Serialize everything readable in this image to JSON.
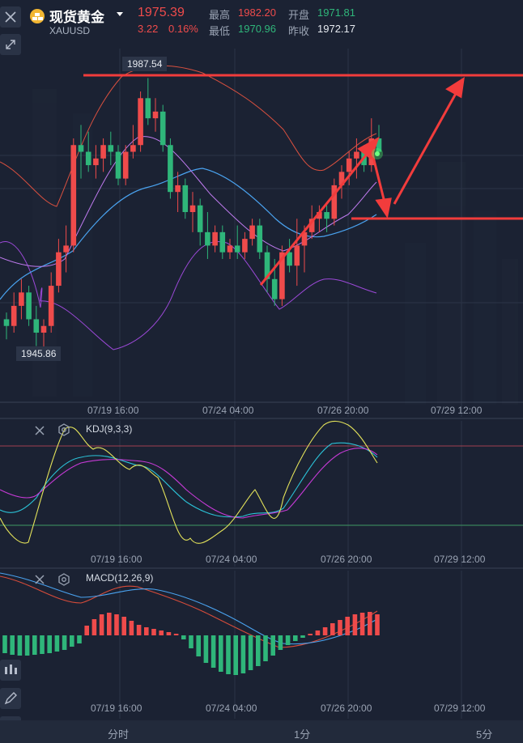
{
  "header": {
    "name": "现货黄金",
    "symbol": "XAUUSD",
    "price": "1975.39",
    "change": "3.22",
    "change_pct": "0.16%",
    "high_label": "最高",
    "high": "1982.20",
    "open_label": "开盘",
    "open": "1971.81",
    "low_label": "最低",
    "low": "1970.96",
    "prev_label": "昨收",
    "prev": "1972.17",
    "colors": {
      "up": "#ef4b4b",
      "down": "#2fb67a",
      "text": "#c9d1dc"
    }
  },
  "price_labels": {
    "max": "1987.54",
    "min": "1945.86"
  },
  "kdj": {
    "label": "KDJ(9,3,3)"
  },
  "macd": {
    "label": "MACD(12,26,9)"
  },
  "time_axis": [
    "07/19 16:00",
    "07/24 04:00",
    "07/26 20:00",
    "07/29 12:00"
  ],
  "bottom_tabs": [
    "分时",
    "1分",
    "5分"
  ],
  "chart_data": [
    {
      "type": "candlestick",
      "categories_note": "hourly candles",
      "x_ticks": [
        "07/19 16:00",
        "07/24 04:00",
        "07/26 20:00",
        "07/29 12:00"
      ],
      "annotations": [
        "1987.54",
        "1945.86"
      ],
      "candles": [
        [
          1951,
          1952,
          1948,
          1950
        ],
        [
          1950,
          1955,
          1949,
          1953
        ],
        [
          1953,
          1957,
          1951,
          1955
        ],
        [
          1955,
          1956,
          1950,
          1951
        ],
        [
          1951,
          1953,
          1947,
          1949
        ],
        [
          1949,
          1951,
          1946,
          1950
        ],
        [
          1950,
          1958,
          1949,
          1956
        ],
        [
          1956,
          1963,
          1955,
          1961
        ],
        [
          1961,
          1965,
          1958,
          1962
        ],
        [
          1962,
          1978,
          1961,
          1977
        ],
        [
          1977,
          1980,
          1972,
          1976
        ],
        [
          1976,
          1979,
          1973,
          1974
        ],
        [
          1974,
          1977,
          1972,
          1975
        ],
        [
          1975,
          1978,
          1973,
          1977
        ],
        [
          1977,
          1979,
          1974,
          1976
        ],
        [
          1976,
          1977,
          1971,
          1972
        ],
        [
          1972,
          1977,
          1971,
          1976
        ],
        [
          1976,
          1980,
          1975,
          1977
        ],
        [
          1977,
          1985,
          1976,
          1984
        ],
        [
          1984,
          1987,
          1980,
          1981
        ],
        [
          1981,
          1984,
          1979,
          1982
        ],
        [
          1982,
          1983,
          1976,
          1977
        ],
        [
          1977,
          1978,
          1969,
          1970
        ],
        [
          1970,
          1973,
          1967,
          1971
        ],
        [
          1971,
          1972,
          1966,
          1967
        ],
        [
          1967,
          1970,
          1964,
          1968
        ],
        [
          1968,
          1969,
          1962,
          1964
        ],
        [
          1964,
          1967,
          1960,
          1962
        ],
        [
          1962,
          1965,
          1961,
          1964
        ],
        [
          1964,
          1965,
          1960,
          1961
        ],
        [
          1961,
          1963,
          1960,
          1962
        ],
        [
          1962,
          1965,
          1960,
          1961
        ],
        [
          1961,
          1964,
          1960,
          1963
        ],
        [
          1963,
          1966,
          1962,
          1965
        ],
        [
          1965,
          1966,
          1960,
          1961
        ],
        [
          1961,
          1962,
          1955,
          1957
        ],
        [
          1957,
          1960,
          1953,
          1954
        ],
        [
          1954,
          1962,
          1953,
          1961
        ],
        [
          1961,
          1963,
          1958,
          1959
        ],
        [
          1959,
          1966,
          1956,
          1962
        ],
        [
          1962,
          1965,
          1958,
          1964
        ],
        [
          1964,
          1968,
          1963,
          1966
        ],
        [
          1966,
          1968,
          1964,
          1967
        ],
        [
          1967,
          1968,
          1964,
          1966
        ],
        [
          1966,
          1972,
          1965,
          1971
        ],
        [
          1971,
          1974,
          1969,
          1973
        ],
        [
          1973,
          1976,
          1971,
          1975
        ],
        [
          1975,
          1978,
          1972,
          1976
        ],
        [
          1976,
          1977,
          1973,
          1974
        ],
        [
          1974,
          1981,
          1973,
          1978
        ],
        [
          1978,
          1980,
          1976,
          1976
        ]
      ]
    },
    {
      "type": "line",
      "title": "KDJ(9,3,3)",
      "x_ticks": [
        "07/19 16:00",
        "07/24 04:00",
        "07/26 20:00",
        "07/29 12:00"
      ]
    },
    {
      "type": "bar",
      "title": "MACD(12,26,9)",
      "x_ticks": [
        "07/19 16:00",
        "07/24 04:00",
        "07/26 20:00",
        "07/29 12:00"
      ],
      "histogram": [
        -2.2,
        -2.4,
        -2.5,
        -2.5,
        -2.4,
        -2.3,
        -2.2,
        -2,
        -1.8,
        -1.4,
        -1,
        1.2,
        2,
        2.6,
        2.8,
        2.6,
        2.3,
        1.8,
        1.3,
        1,
        0.8,
        0.6,
        0.4,
        0.2,
        -0.5,
        -1.6,
        -2.6,
        -3.4,
        -4,
        -4.5,
        -4.8,
        -4.9,
        -4.7,
        -4.3,
        -3.8,
        -3.2,
        -2.5,
        -1.8,
        -1.2,
        -0.7,
        -0.3,
        0.2,
        0.6,
        1,
        1.5,
        1.9,
        2.3,
        2.6,
        2.8,
        2.9,
        2.6
      ]
    }
  ]
}
